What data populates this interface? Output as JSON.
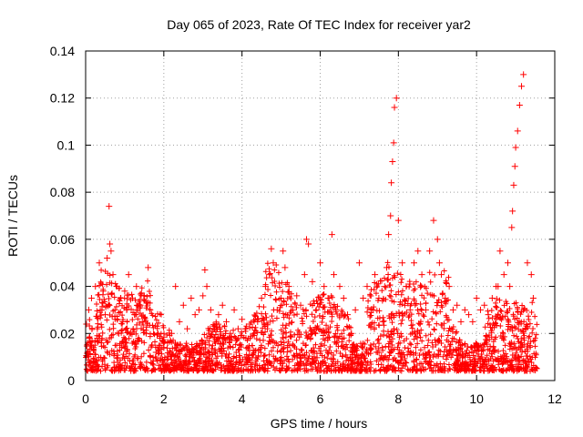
{
  "chart_data": {
    "type": "scatter",
    "title": "Day 065 of 2023, Rate Of TEC Index for receiver yar2",
    "xlabel": "GPS time / hours",
    "ylabel": "ROTI / TECUs",
    "xlim": [
      0,
      12
    ],
    "ylim": [
      0,
      0.14
    ],
    "x_ticks": [
      0,
      2,
      4,
      6,
      8,
      10,
      12
    ],
    "x_tick_labels": [
      "0",
      "2",
      "4",
      "6",
      "8",
      "10",
      "12"
    ],
    "y_ticks": [
      0,
      0.02,
      0.04,
      0.06,
      0.08,
      0.1,
      0.12,
      0.14
    ],
    "y_tick_labels": [
      "0",
      "0.02",
      "0.04",
      "0.06",
      "0.08",
      "0.1",
      "0.12",
      "0.14"
    ],
    "grid": true,
    "marker": "+",
    "color": "#ff0000",
    "series": [
      {
        "name": "ROTI",
        "x": [
          0.02,
          0.05,
          0.08,
          0.1,
          0.15,
          0.2,
          0.25,
          0.3,
          0.35,
          0.4,
          0.45,
          0.5,
          0.55,
          0.6,
          0.62,
          0.65,
          0.7,
          0.75,
          0.8,
          0.85,
          0.9,
          0.95,
          1.0,
          1.05,
          1.1,
          1.15,
          1.2,
          1.25,
          1.3,
          1.35,
          1.4,
          1.45,
          1.5,
          1.55,
          1.6,
          1.65,
          1.7,
          1.8,
          1.9,
          2.0,
          2.1,
          2.2,
          2.3,
          2.4,
          2.5,
          2.6,
          2.7,
          2.8,
          2.9,
          3.0,
          3.05,
          3.1,
          3.2,
          3.3,
          3.4,
          3.5,
          3.6,
          3.7,
          3.8,
          3.9,
          4.0,
          4.1,
          4.2,
          4.3,
          4.4,
          4.5,
          4.6,
          4.7,
          4.75,
          4.8,
          4.9,
          5.0,
          5.05,
          5.1,
          5.2,
          5.3,
          5.4,
          5.5,
          5.6,
          5.65,
          5.7,
          5.8,
          5.9,
          6.0,
          6.1,
          6.2,
          6.3,
          6.35,
          6.4,
          6.5,
          6.6,
          6.7,
          6.8,
          6.9,
          7.0,
          7.1,
          7.2,
          7.3,
          7.4,
          7.5,
          7.6,
          7.65,
          7.7,
          7.75,
          7.8,
          7.82,
          7.85,
          7.88,
          7.9,
          7.95,
          8.0,
          8.1,
          8.2,
          8.3,
          8.4,
          8.5,
          8.6,
          8.7,
          8.8,
          8.9,
          9.0,
          9.05,
          9.1,
          9.2,
          9.3,
          9.4,
          9.5,
          9.6,
          9.7,
          9.8,
          9.9,
          10.0,
          10.1,
          10.2,
          10.3,
          10.4,
          10.5,
          10.55,
          10.6,
          10.7,
          10.8,
          10.85,
          10.9,
          10.92,
          10.95,
          10.98,
          11.0,
          11.05,
          11.1,
          11.15,
          11.2,
          11.3,
          11.4,
          11.45
        ],
        "y": [
          0.024,
          0.012,
          0.03,
          0.018,
          0.035,
          0.014,
          0.04,
          0.022,
          0.05,
          0.016,
          0.038,
          0.028,
          0.052,
          0.074,
          0.058,
          0.055,
          0.045,
          0.03,
          0.04,
          0.02,
          0.035,
          0.025,
          0.038,
          0.03,
          0.045,
          0.02,
          0.035,
          0.028,
          0.04,
          0.018,
          0.032,
          0.025,
          0.036,
          0.02,
          0.048,
          0.03,
          0.015,
          0.012,
          0.018,
          0.014,
          0.016,
          0.02,
          0.04,
          0.025,
          0.032,
          0.022,
          0.035,
          0.028,
          0.03,
          0.036,
          0.047,
          0.04,
          0.03,
          0.022,
          0.028,
          0.032,
          0.025,
          0.02,
          0.03,
          0.022,
          0.026,
          0.018,
          0.024,
          0.02,
          0.025,
          0.035,
          0.04,
          0.045,
          0.056,
          0.05,
          0.03,
          0.035,
          0.055,
          0.048,
          0.04,
          0.03,
          0.036,
          0.032,
          0.045,
          0.06,
          0.058,
          0.042,
          0.03,
          0.05,
          0.04,
          0.035,
          0.062,
          0.045,
          0.03,
          0.04,
          0.035,
          0.028,
          0.02,
          0.03,
          0.05,
          0.035,
          0.04,
          0.03,
          0.045,
          0.035,
          0.025,
          0.04,
          0.048,
          0.062,
          0.07,
          0.084,
          0.093,
          0.101,
          0.116,
          0.12,
          0.068,
          0.05,
          0.04,
          0.03,
          0.05,
          0.055,
          0.045,
          0.03,
          0.055,
          0.068,
          0.06,
          0.05,
          0.045,
          0.035,
          0.04,
          0.03,
          0.032,
          0.025,
          0.03,
          0.028,
          0.025,
          0.035,
          0.03,
          0.032,
          0.028,
          0.035,
          0.04,
          0.04,
          0.055,
          0.045,
          0.05,
          0.04,
          0.065,
          0.072,
          0.083,
          0.091,
          0.099,
          0.106,
          0.117,
          0.125,
          0.13,
          0.05,
          0.045,
          0.035
        ]
      }
    ]
  }
}
